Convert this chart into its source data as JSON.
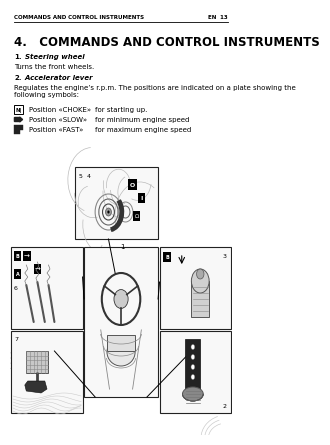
{
  "bg_color": "#ffffff",
  "header_text": "COMMANDS AND CONTROL INSTRUMENTS",
  "header_right": "EN  13",
  "title": "4.   COMMANDS AND CONTROL INSTRUMENTS",
  "section1_label_num": "1.",
  "section1_label_rest": "  Steering wheel",
  "section1_body": "Turns the front wheels.",
  "section2_label_num": "2.",
  "section2_label_rest": "  Accelerator lever",
  "section2_body": "Regulates the engine’s r.p.m. The positions are indicated on a plate showing the\nfollowing symbols:",
  "pos1_label": "Position «CHOKE»",
  "pos1_desc": "for starting up.",
  "pos2_label": "Position «SLOW»",
  "pos2_desc": "for minimum engine speed",
  "pos3_label": "Position «FAST»",
  "pos3_desc": "for maximum engine speed",
  "diagram_bg": "#f0f0f0",
  "line_color": "#222222",
  "box_color": "#f8f8f8"
}
